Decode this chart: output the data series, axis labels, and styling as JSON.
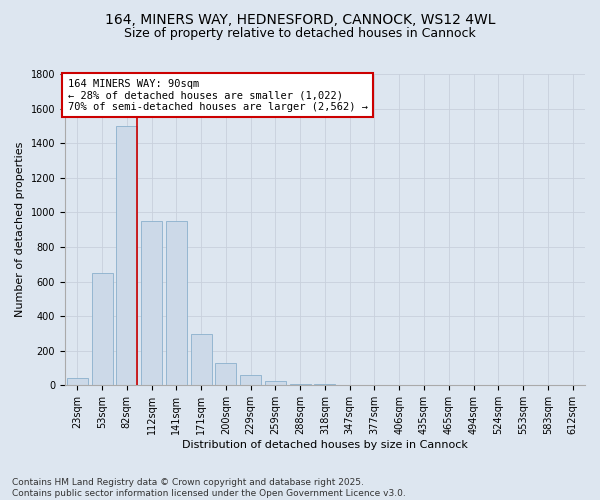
{
  "title1": "164, MINERS WAY, HEDNESFORD, CANNOCK, WS12 4WL",
  "title2": "Size of property relative to detached houses in Cannock",
  "xlabel": "Distribution of detached houses by size in Cannock",
  "ylabel": "Number of detached properties",
  "categories": [
    "23sqm",
    "53sqm",
    "82sqm",
    "112sqm",
    "141sqm",
    "171sqm",
    "200sqm",
    "229sqm",
    "259sqm",
    "288sqm",
    "318sqm",
    "347sqm",
    "377sqm",
    "406sqm",
    "435sqm",
    "465sqm",
    "494sqm",
    "524sqm",
    "553sqm",
    "583sqm",
    "612sqm"
  ],
  "values": [
    40,
    650,
    1500,
    950,
    950,
    295,
    130,
    60,
    25,
    10,
    5,
    0,
    0,
    0,
    0,
    0,
    0,
    0,
    0,
    0,
    0
  ],
  "bar_color": "#ccd9e8",
  "bar_edge_color": "#8ab0cc",
  "vline_index": 2.43,
  "annotation_text": "164 MINERS WAY: 90sqm\n← 28% of detached houses are smaller (1,022)\n70% of semi-detached houses are larger (2,562) →",
  "annotation_box_facecolor": "#ffffff",
  "annotation_box_edgecolor": "#cc0000",
  "vline_color": "#cc0000",
  "ylim": [
    0,
    1800
  ],
  "yticks": [
    0,
    200,
    400,
    600,
    800,
    1000,
    1200,
    1400,
    1600,
    1800
  ],
  "grid_color": "#c8d0dc",
  "background_color": "#dde6f0",
  "footer1": "Contains HM Land Registry data © Crown copyright and database right 2025.",
  "footer2": "Contains public sector information licensed under the Open Government Licence v3.0.",
  "title_fontsize": 10,
  "subtitle_fontsize": 9,
  "axis_label_fontsize": 8,
  "tick_fontsize": 7,
  "footer_fontsize": 6.5,
  "annotation_fontsize": 7.5
}
